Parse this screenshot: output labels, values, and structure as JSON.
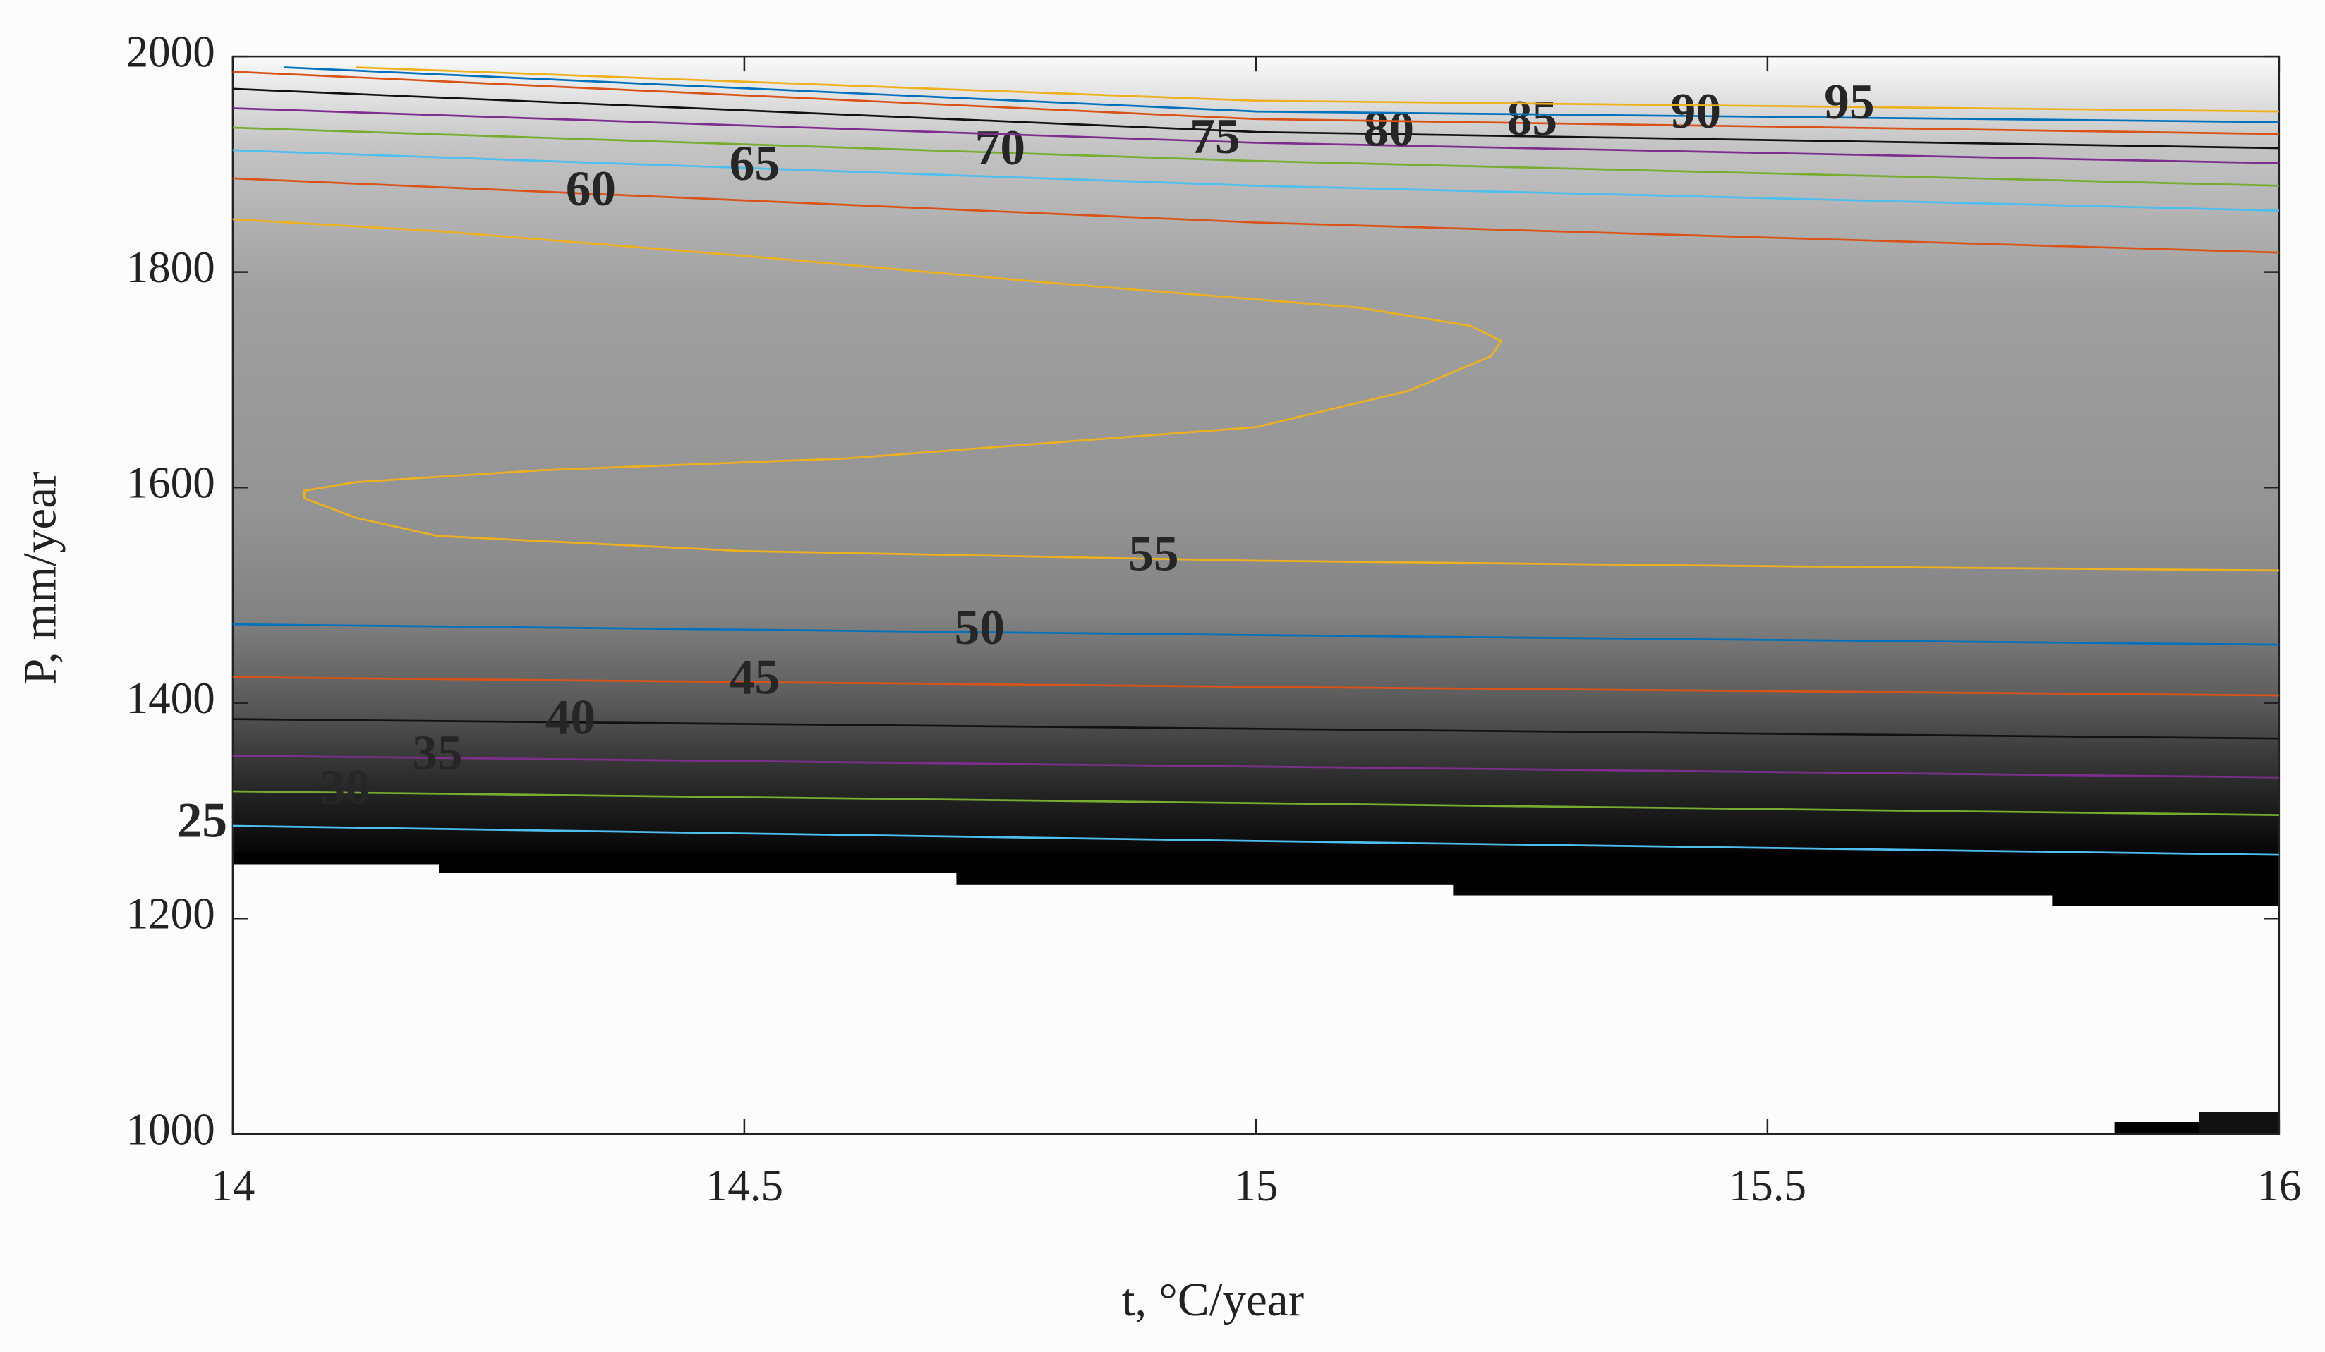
{
  "chart_data": {
    "type": "contour",
    "xlabel": "t, °C/year",
    "ylabel": "P, mm/year",
    "xlim": [
      14,
      16
    ],
    "ylim": [
      1000,
      2000
    ],
    "xticks": [
      14,
      14.5,
      15,
      15.5,
      16
    ],
    "yticks": [
      1000,
      1200,
      1400,
      1600,
      1800,
      2000
    ],
    "series": [
      {
        "level": 25,
        "color": "#4dbeee",
        "x": [
          14,
          15,
          16
        ],
        "y": [
          1286,
          1272,
          1259
        ]
      },
      {
        "level": 30,
        "color": "#77ac30",
        "x": [
          14,
          15,
          16
        ],
        "y": [
          1318,
          1307,
          1296
        ]
      },
      {
        "level": 35,
        "color": "#7e2f8e",
        "x": [
          14,
          15,
          16
        ],
        "y": [
          1351,
          1341,
          1331
        ]
      },
      {
        "level": 40,
        "color": "#111111",
        "x": [
          14,
          15,
          16
        ],
        "y": [
          1385,
          1376,
          1367
        ]
      },
      {
        "level": 45,
        "color": "#d95319",
        "x": [
          14,
          15,
          16
        ],
        "y": [
          1424,
          1415,
          1407
        ]
      },
      {
        "level": 50,
        "color": "#0072bd",
        "x": [
          14,
          15,
          16
        ],
        "y": [
          1473,
          1463,
          1454
        ]
      },
      {
        "level": 55,
        "color": "#edb120",
        "x": [
          16,
          15.5,
          15,
          14.5,
          14.2,
          14.12,
          14.07,
          14.07,
          14.12,
          14.3,
          14.6,
          15,
          15.15,
          15.23,
          15.24,
          15.21,
          15.1,
          14.8,
          14.5,
          14.2,
          14
        ],
        "y": [
          1523,
          1527,
          1532,
          1541,
          1555,
          1572,
          1590,
          1597,
          1605,
          1616,
          1627,
          1656,
          1690,
          1722,
          1736,
          1750,
          1767,
          1790,
          1815,
          1838,
          1849
        ]
      },
      {
        "level": 60,
        "color": "#d95319",
        "x": [
          14,
          15,
          16
        ],
        "y": [
          1887,
          1846,
          1818
        ]
      },
      {
        "level": 65,
        "color": "#4dbeee",
        "x": [
          14,
          15,
          16
        ],
        "y": [
          1913,
          1880,
          1857
        ]
      },
      {
        "level": 70,
        "color": "#77ac30",
        "x": [
          14,
          15,
          16
        ],
        "y": [
          1934,
          1903,
          1880
        ]
      },
      {
        "level": 75,
        "color": "#7e2f8e",
        "x": [
          14,
          15,
          16
        ],
        "y": [
          1952,
          1920,
          1901
        ]
      },
      {
        "level": 80,
        "color": "#111111",
        "x": [
          14,
          15,
          16
        ],
        "y": [
          1970,
          1930,
          1915
        ]
      },
      {
        "level": 85,
        "color": "#d95319",
        "x": [
          14,
          15,
          16
        ],
        "y": [
          1986,
          1942,
          1928
        ]
      },
      {
        "level": 90,
        "color": "#0072bd",
        "x": [
          14.05,
          15,
          16
        ],
        "y": [
          1990,
          1949,
          1939
        ]
      },
      {
        "level": 95,
        "color": "#edb120",
        "x": [
          14.12,
          15,
          16
        ],
        "y": [
          1990,
          1959,
          1949
        ]
      }
    ]
  }
}
